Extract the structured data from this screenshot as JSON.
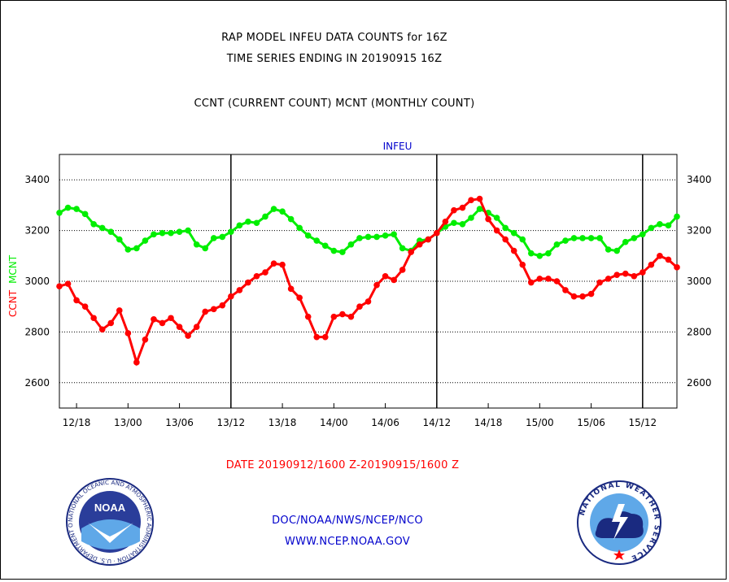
{
  "header": {
    "title_line1": "RAP MODEL INFEU DATA COUNTS for 16Z",
    "title_line2": "TIME SERIES ENDING IN 20190915 16Z",
    "legend_line": "CCNT (CURRENT COUNT) MCNT (MONTHLY COUNT)"
  },
  "footer": {
    "date_range": "DATE 20190912/1600 Z-20190915/1600 Z",
    "org": "DOC/NOAA/NWS/NCEP/NCO",
    "url": "WWW.NCEP.NOAA.GOV"
  },
  "logos": {
    "noaa_badge_text": "NOAA",
    "noaa_ring_text": "NATIONAL OCEANIC AND ATMOSPHERIC ADMINISTRATION · U.S. DEPARTMENT OF COMMERCE",
    "nws_ring_text": "NATIONAL WEATHER SERVICE"
  },
  "colors": {
    "ccnt": "#ff0000",
    "mcnt": "#00ee00",
    "title": "#000000",
    "plot_title": "#0000cc",
    "links": "#0000cc",
    "date_text": "#ff0000",
    "grid": "#000000"
  },
  "chart_data": {
    "type": "line",
    "title": "INFEU",
    "ylabel_parts": [
      {
        "text": "CCNT",
        "color": "#ff0000"
      },
      {
        "text": "MCNT",
        "color": "#00ee00"
      }
    ],
    "ylim": [
      2500,
      3500
    ],
    "yticks": [
      2600,
      2800,
      3000,
      3200,
      3400
    ],
    "xlim": [
      0,
      72
    ],
    "xtick_positions": [
      2,
      8,
      14,
      20,
      26,
      32,
      38,
      44,
      50,
      56,
      62,
      68
    ],
    "xtick_labels": [
      "12/18",
      "13/00",
      "13/06",
      "13/12",
      "13/18",
      "14/00",
      "14/06",
      "14/12",
      "14/18",
      "15/00",
      "15/06",
      "15/12"
    ],
    "vlines": [
      20,
      44,
      68
    ],
    "grid": true,
    "series": [
      {
        "name": "CCNT",
        "color": "#ff0000",
        "values": [
          2980,
          2990,
          2925,
          2900,
          2855,
          2810,
          2835,
          2885,
          2795,
          2680,
          2770,
          2850,
          2835,
          2855,
          2820,
          2785,
          2820,
          2880,
          2890,
          2905,
          2940,
          2965,
          2995,
          3020,
          3035,
          3070,
          3065,
          2970,
          2935,
          2860,
          2780,
          2780,
          2860,
          2870,
          2860,
          2900,
          2920,
          2985,
          3020,
          3005,
          3045,
          3115,
          3145,
          3165,
          3190,
          3235,
          3280,
          3290,
          3320,
          3325,
          3245,
          3200,
          3165,
          3120,
          3065,
          2995,
          3010,
          3010,
          3000,
          2965,
          2940,
          2940,
          2950,
          2995,
          3010,
          3025,
          3030,
          3020,
          3035,
          3065,
          3100,
          3085,
          3055
        ]
      },
      {
        "name": "MCNT",
        "color": "#00ee00",
        "values": [
          3270,
          3290,
          3285,
          3265,
          3225,
          3210,
          3195,
          3165,
          3125,
          3130,
          3160,
          3185,
          3190,
          3190,
          3195,
          3200,
          3145,
          3130,
          3170,
          3175,
          3195,
          3220,
          3235,
          3230,
          3255,
          3285,
          3275,
          3245,
          3210,
          3180,
          3160,
          3140,
          3120,
          3115,
          3145,
          3170,
          3175,
          3175,
          3180,
          3185,
          3130,
          3120,
          3160,
          3165,
          3190,
          3215,
          3230,
          3225,
          3250,
          3285,
          3270,
          3250,
          3210,
          3190,
          3165,
          3110,
          3100,
          3110,
          3145,
          3160,
          3170,
          3170,
          3170,
          3170,
          3125,
          3120,
          3155,
          3170,
          3185,
          3210,
          3225,
          3220,
          3255
        ]
      }
    ]
  }
}
